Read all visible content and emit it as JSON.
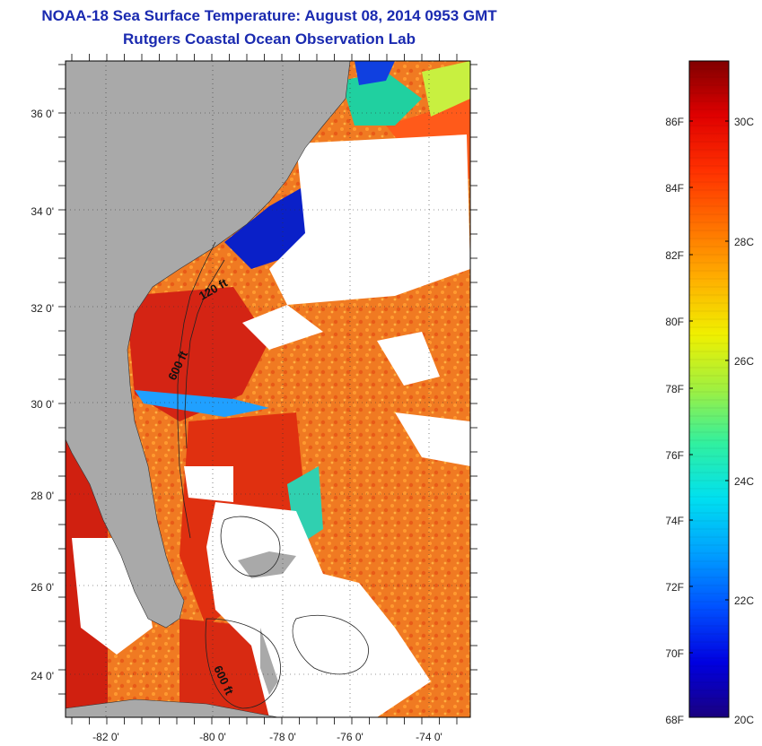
{
  "title": "NOAA-18 Sea Surface Temperature:  August 08, 2014 0953 GMT",
  "subtitle": "Rutgers Coastal Ocean Observation Lab",
  "lat_labels": [
    "36 0'",
    "34 0'",
    "32 0'",
    "30 0'",
    "28 0'",
    "26 0'",
    "24 0'"
  ],
  "lon_labels": [
    "-82 0'",
    "-80 0'",
    "-78 0'",
    "-76 0'",
    "-74 0'"
  ],
  "depth_labels": [
    "120 ft",
    "600 ft",
    "600 ft"
  ],
  "colorbar": {
    "fahrenheit_labels": [
      "86F",
      "84F",
      "82F",
      "80F",
      "78F",
      "76F",
      "74F",
      "72F",
      "70F",
      "68F"
    ],
    "celsius_labels": [
      "30C",
      "28C",
      "26C",
      "24C",
      "22C",
      "20C"
    ],
    "min_f": 68,
    "max_f": 88,
    "colors": [
      "#1a0080",
      "#0000e0",
      "#0050ff",
      "#00a0ff",
      "#00e0f0",
      "#30f0a0",
      "#a0f040",
      "#f0f000",
      "#ffb000",
      "#ff7000",
      "#ff3000",
      "#e00000",
      "#800000"
    ]
  },
  "colors": {
    "land": "#a9a9a9",
    "cloud": "#ffffff",
    "warm_sea": "#f07020",
    "hot_sea": "#d81818",
    "cold_sea": "#0a20c8",
    "title": "#1a2ab0"
  }
}
